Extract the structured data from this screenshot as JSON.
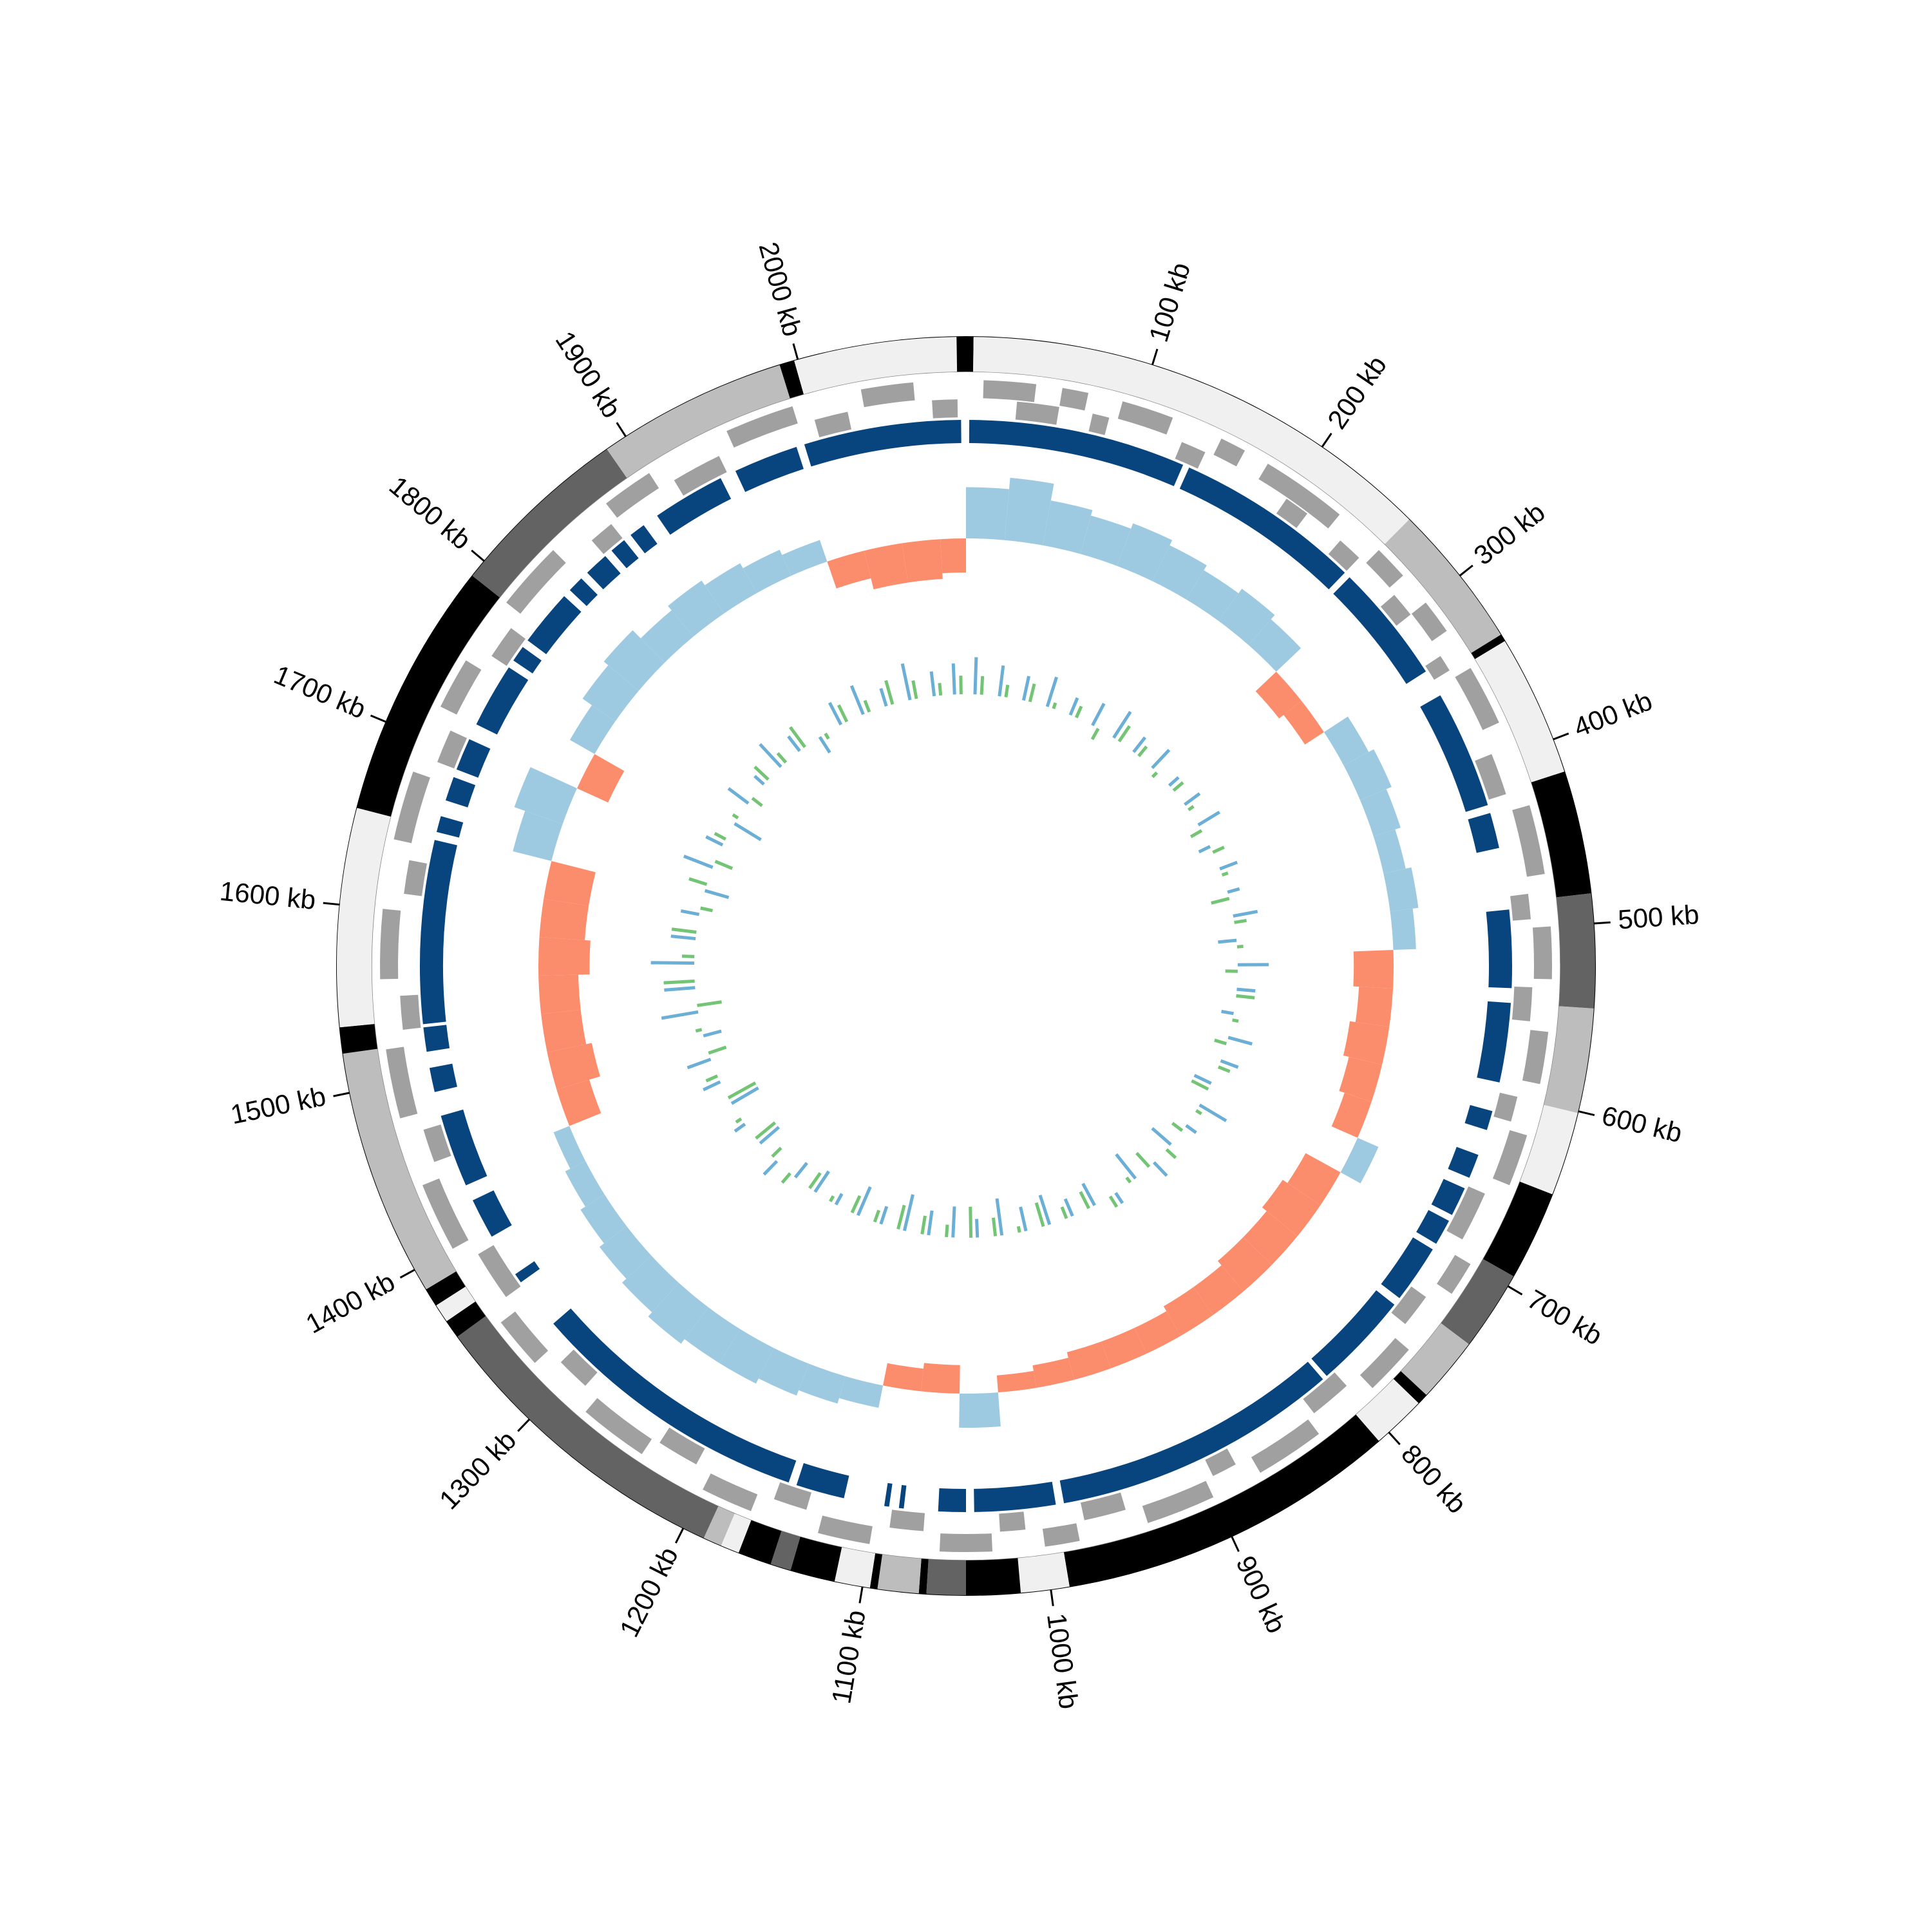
{
  "chart_data": {
    "type": "circular",
    "xlim": [
      0,
      2090
    ],
    "xticks": [
      {
        "value": 100,
        "label": "100 kb"
      },
      {
        "value": 200,
        "label": "200 kb"
      },
      {
        "value": 300,
        "label": "300 kb"
      },
      {
        "value": 400,
        "label": "400 kb"
      },
      {
        "value": 500,
        "label": "500 kb"
      },
      {
        "value": 600,
        "label": "600 kb"
      },
      {
        "value": 700,
        "label": "700 kb"
      },
      {
        "value": 800,
        "label": "800 kb"
      },
      {
        "value": 900,
        "label": "900 kb"
      },
      {
        "value": 1000,
        "label": "1000 kb"
      },
      {
        "value": 1100,
        "label": "1100 kb"
      },
      {
        "value": 1200,
        "label": "1200 kb"
      },
      {
        "value": 1300,
        "label": "1300 kb"
      },
      {
        "value": 1400,
        "label": "1400 kb"
      },
      {
        "value": 1500,
        "label": "1500 kb"
      },
      {
        "value": 1600,
        "label": "1600 kb"
      },
      {
        "value": 1700,
        "label": "1700 kb"
      },
      {
        "value": 1800,
        "label": "1800 kb"
      },
      {
        "value": 1900,
        "label": "1900 kb"
      },
      {
        "value": 2000,
        "label": "2000 kb"
      }
    ],
    "contigs": {
      "values": [
        [
          0,
          4
        ],
        [
          4,
          260
        ],
        [
          260,
          338
        ],
        [
          338,
          342
        ],
        [
          342,
          418
        ],
        [
          418,
          484
        ],
        [
          484,
          545
        ],
        [
          545,
          601
        ],
        [
          601,
          646
        ],
        [
          646,
          694
        ],
        [
          694,
          737
        ],
        [
          737,
          772
        ],
        [
          772,
          778
        ],
        [
          778,
          807
        ],
        [
          807,
          990
        ],
        [
          990,
          1016
        ],
        [
          1016,
          1045
        ],
        [
          1045,
          1066
        ],
        [
          1066,
          1070
        ],
        [
          1070,
          1092
        ],
        [
          1092,
          1096
        ],
        [
          1096,
          1115
        ],
        [
          1115,
          1139
        ],
        [
          1139,
          1150
        ],
        [
          1150,
          1168
        ],
        [
          1168,
          1178
        ],
        [
          1178,
          1188
        ],
        [
          1188,
          1358
        ],
        [
          1358,
          1368
        ],
        [
          1368,
          1378
        ],
        [
          1378,
          1388
        ],
        [
          1388,
          1521
        ],
        [
          1521,
          1535
        ],
        [
          1535,
          1652
        ],
        [
          1652,
          1790
        ],
        [
          1790,
          1888
        ],
        [
          1888,
          1990
        ],
        [
          1990,
          1998
        ],
        [
          1998,
          2085
        ],
        [
          2085,
          2090
        ]
      ],
      "colors": [
        "#000000",
        "#f0f0f0",
        "#bdbdbd",
        "#000000",
        "#f0f0f0",
        "#000000",
        "#636363",
        "#bdbdbd",
        "#f0f0f0",
        "#000000",
        "#636363",
        "#bdbdbd",
        "#000000",
        "#f0f0f0",
        "#000000",
        "#f0f0f0",
        "#000000",
        "#636363",
        "#000000",
        "#bdbdbd",
        "#000000",
        "#f0f0f0",
        "#000000",
        "#636363",
        "#000000",
        "#f0f0f0",
        "#bdbdbd",
        "#636363",
        "#000000",
        "#f0f0f0",
        "#000000",
        "#bdbdbd",
        "#000000",
        "#f0f0f0",
        "#000000",
        "#636363",
        "#bdbdbd",
        "#000000",
        "#f0f0f0",
        "#000000"
      ]
    },
    "genes": {
      "color": "#a0a0a0",
      "forward": [
        [
          10,
          40
        ],
        [
          55,
          70
        ],
        [
          90,
          120
        ],
        [
          150,
          165
        ],
        [
          180,
          230
        ],
        [
          260,
          280
        ],
        [
          300,
          320
        ],
        [
          345,
          380
        ],
        [
          430,
          470
        ],
        [
          500,
          530
        ],
        [
          560,
          590
        ],
        [
          620,
          650
        ],
        [
          700,
          720
        ],
        [
          760,
          790
        ],
        [
          830,
          870
        ],
        [
          900,
          940
        ],
        [
          980,
          1000
        ],
        [
          1030,
          1060
        ],
        [
          1100,
          1130
        ],
        [
          1170,
          1200
        ],
        [
          1240,
          1280
        ],
        [
          1320,
          1350
        ],
        [
          1400,
          1440
        ],
        [
          1480,
          1520
        ],
        [
          1560,
          1600
        ],
        [
          1640,
          1680
        ],
        [
          1720,
          1750
        ],
        [
          1790,
          1830
        ],
        [
          1870,
          1900
        ],
        [
          1950,
          1990
        ],
        [
          2030,
          2060
        ]
      ],
      "reverse": [
        [
          30,
          55
        ],
        [
          75,
          85
        ],
        [
          130,
          145
        ],
        [
          200,
          215
        ],
        [
          240,
          255
        ],
        [
          285,
          300
        ],
        [
          330,
          340
        ],
        [
          395,
          420
        ],
        [
          480,
          495
        ],
        [
          535,
          555
        ],
        [
          600,
          615
        ],
        [
          660,
          690
        ],
        [
          730,
          750
        ],
        [
          800,
          825
        ],
        [
          880,
          895
        ],
        [
          950,
          975
        ],
        [
          1010,
          1025
        ],
        [
          1070,
          1090
        ],
        [
          1140,
          1160
        ],
        [
          1210,
          1235
        ],
        [
          1290,
          1310
        ],
        [
          1360,
          1390
        ],
        [
          1450,
          1470
        ],
        [
          1530,
          1550
        ],
        [
          1610,
          1630
        ],
        [
          1690,
          1710
        ],
        [
          1760,
          1780
        ],
        [
          1850,
          1865
        ],
        [
          1910,
          1940
        ],
        [
          2000,
          2020
        ],
        [
          2070,
          2085
        ]
      ]
    },
    "blocks": {
      "color": "#08457e",
      "values": [
        [
          2,
          136
        ],
        [
          140,
          255
        ],
        [
          259,
          333
        ],
        [
          350,
          423
        ],
        [
          428,
          450
        ],
        [
          488,
          536
        ],
        [
          545,
          594
        ],
        [
          612,
          624
        ],
        [
          640,
          655
        ],
        [
          662,
          680
        ],
        [
          684,
          700
        ],
        [
          704,
          740
        ],
        [
          745,
          805
        ],
        [
          808,
          985
        ],
        [
          990,
          1040
        ],
        [
          1045,
          1062
        ],
        [
          1083,
          1086
        ],
        [
          1092,
          1095
        ],
        [
          1120,
          1150
        ],
        [
          1155,
          1330
        ],
        [
          1362,
          1368
        ],
        [
          1395,
          1420
        ],
        [
          1430,
          1475
        ],
        [
          1490,
          1505
        ],
        [
          1515,
          1530
        ],
        [
          1532,
          1645
        ],
        [
          1650,
          1660
        ],
        [
          1670,
          1685
        ],
        [
          1690,
          1710
        ],
        [
          1720,
          1760
        ],
        [
          1765,
          1775
        ],
        [
          1780,
          1815
        ],
        [
          1820,
          1830
        ],
        [
          1835,
          1850
        ],
        [
          1855,
          1865
        ],
        [
          1870,
          1880
        ],
        [
          1890,
          1935
        ],
        [
          1945,
          1985
        ],
        [
          1990,
          2087
        ]
      ]
    },
    "bins": [
      0,
      30,
      60,
      90,
      120,
      150,
      180,
      210,
      240,
      270,
      300,
      330,
      360,
      390,
      420,
      450,
      480,
      510,
      540,
      570,
      600,
      630,
      660,
      690,
      720,
      750,
      780,
      810,
      840,
      870,
      900,
      930,
      960,
      990,
      1020,
      1050,
      1080,
      1110,
      1140,
      1170,
      1200,
      1230,
      1260,
      1290,
      1320,
      1350,
      1380,
      1410,
      1440,
      1470,
      1500,
      1530,
      1560,
      1590,
      1620,
      1650,
      1680,
      1710,
      1740,
      1770,
      1800,
      1830,
      1860,
      1890,
      1920,
      1950,
      1980,
      2010,
      2040,
      2070,
      2090
    ],
    "skew": {
      "ylim": [
        -0.12,
        0.12
      ],
      "positive_color": "#9ecae1",
      "negative_color": "#fc8d6c",
      "values": [
        0.09,
        0.11,
        0.08,
        0.07,
        0.08,
        0.07,
        0.06,
        0.07,
        0.06,
        -0.05,
        -0.04,
        0.05,
        0.06,
        0.05,
        0.04,
        0.05,
        0.04,
        -0.07,
        -0.06,
        -0.07,
        -0.06,
        -0.05,
        0.04,
        -0.07,
        -0.08,
        -0.07,
        -0.07,
        -0.06,
        -0.06,
        -0.05,
        -0.05,
        -0.05,
        -0.04,
        -0.03,
        0.06,
        -0.05,
        -0.04,
        0.04,
        0.05,
        0.06,
        0.07,
        0.07,
        0.08,
        0.07,
        0.06,
        0.05,
        0.04,
        0.03,
        -0.06,
        -0.08,
        -0.07,
        -0.07,
        -0.09,
        -0.08,
        -0.08,
        0.07,
        0.09,
        -0.06,
        0.05,
        0.07,
        0.08,
        0.06,
        0.07,
        0.06,
        0.05,
        0.04,
        -0.05,
        -0.07,
        -0.07,
        -0.06
      ]
    },
    "inner": {
      "ylim": [
        -0.08,
        0.08
      ],
      "series": [
        {
          "color": "#6baed6",
          "values": [
            0.06,
            0.05,
            0.04,
            0.05,
            0.03,
            0.04,
            0.05,
            0.03,
            0.04,
            0.02,
            0.03,
            0.04,
            -0.02,
            0.03,
            0.02,
            0.04,
            -0.03,
            0.05,
            0.03,
            -0.02,
            0.04,
            0.03,
            -0.03,
            0.05,
            0.02,
            -0.04,
            0.03,
            -0.05,
            0.02,
            -0.04,
            -0.03,
            -0.05,
            -0.04,
            -0.06,
            -0.03,
            -0.05,
            -0.04,
            -0.06,
            -0.03,
            -0.05,
            -0.02,
            -0.04,
            -0.03,
            0.03,
            -0.04,
            0.02,
            -0.05,
            0.03,
            0.04,
            -0.03,
            0.06,
            0.05,
            0.07,
            0.04,
            0.03,
            -0.04,
            0.05,
            0.03,
            -0.05,
            0.04,
            0.02,
            0.05,
            0.03,
            -0.03,
            0.04,
            0.05,
            0.03,
            0.06,
            0.04,
            0.05
          ]
        },
        {
          "color": "#74c476",
          "values": [
            0.03,
            0.02,
            0.03,
            0.01,
            0.02,
            -0.02,
            0.03,
            0.02,
            -0.01,
            0.02,
            0.01,
            -0.02,
            0.02,
            0.01,
            -0.03,
            0.02,
            0.01,
            -0.02,
            0.03,
            0.01,
            -0.02,
            0.02,
            -0.03,
            0.01,
            -0.02,
            0.02,
            -0.03,
            -0.01,
            0.02,
            -0.03,
            -0.02,
            -0.04,
            -0.01,
            -0.03,
            -0.05,
            -0.02,
            -0.03,
            -0.04,
            -0.02,
            -0.03,
            -0.01,
            -0.03,
            0.02,
            -0.02,
            -0.04,
            0.01,
            -0.05,
            0.02,
            -0.03,
            0.01,
            -0.04,
            0.05,
            0.02,
            0.04,
            -0.02,
            0.03,
            -0.03,
            0.02,
            0.01,
            -0.02,
            0.03,
            0.02,
            0.04,
            -0.01,
            0.03,
            0.02,
            0.04,
            0.03,
            0.02,
            0.03
          ]
        }
      ]
    }
  }
}
